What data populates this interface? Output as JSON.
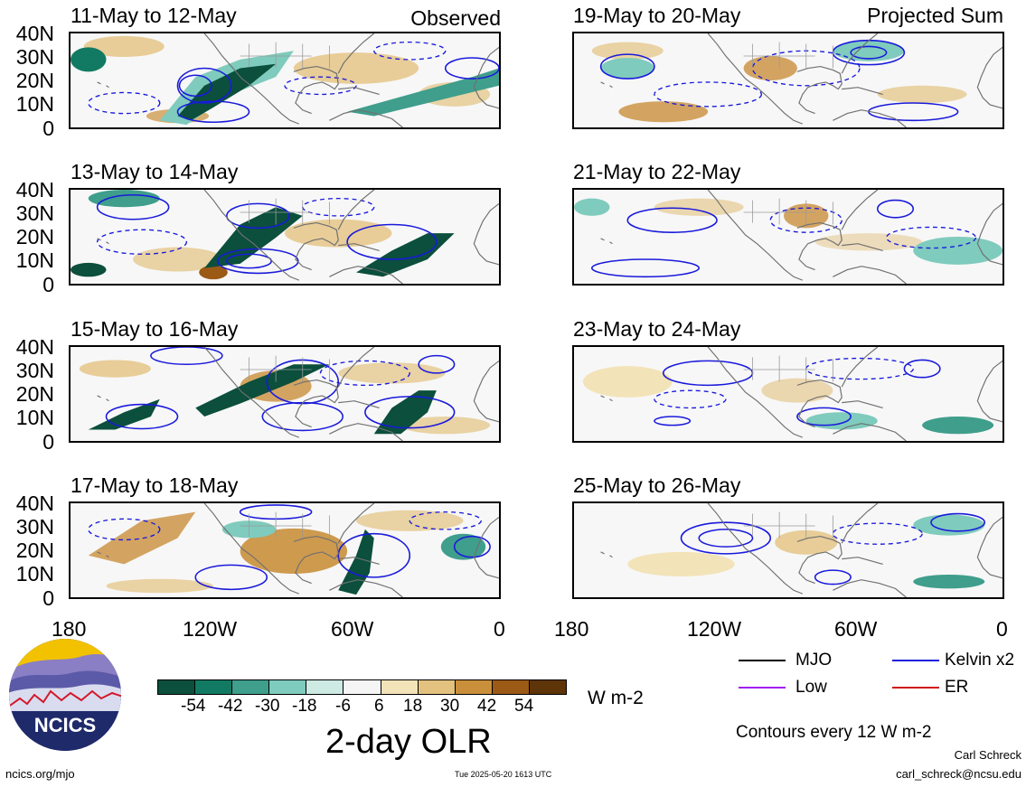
{
  "columns": {
    "left_tag": "Observed",
    "right_tag": "Projected Sum"
  },
  "panels": [
    {
      "title": "11-May to 12-May",
      "column": "left"
    },
    {
      "title": "13-May to 14-May",
      "column": "left"
    },
    {
      "title": "15-May to 16-May",
      "column": "left"
    },
    {
      "title": "17-May to 18-May",
      "column": "left"
    },
    {
      "title": "19-May to 20-May",
      "column": "right"
    },
    {
      "title": "21-May to 22-May",
      "column": "right"
    },
    {
      "title": "23-May to 24-May",
      "column": "right"
    },
    {
      "title": "25-May to 26-May",
      "column": "right"
    }
  ],
  "y_axis_labels": [
    "40N",
    "30N",
    "20N",
    "10N",
    "0"
  ],
  "x_axis_labels": [
    "180",
    "120W",
    "60W",
    "0"
  ],
  "colorbar": {
    "labels": [
      "-54",
      "-42",
      "-30",
      "-18",
      "-6",
      "6",
      "18",
      "30",
      "42",
      "54"
    ],
    "colors": [
      "#0b4f3c",
      "#127a63",
      "#3f9e8c",
      "#7fcbbd",
      "#cdeae3",
      "#f5f5f5",
      "#f3e3b8",
      "#e3c27f",
      "#c98f3b",
      "#9b5a16",
      "#5e3508"
    ],
    "units": "W m-2",
    "title": "2-day OLR"
  },
  "legend": {
    "items": [
      {
        "label": "MJO",
        "color": "#000000"
      },
      {
        "label": "Kelvin x2",
        "color": "#1a1adc"
      },
      {
        "label": "Low",
        "color": "#a020f0"
      },
      {
        "label": "ER",
        "color": "#d01010"
      }
    ],
    "contour_note": "Contours every 12 W m-2"
  },
  "footer": {
    "website": "ncics.org/mjo",
    "timestamp": "Tue 2025-05-20 1613 UTC",
    "author": "Carl Schreck",
    "email": "carl_schreck@ncsu.edu"
  },
  "logo": {
    "text": "NCICS"
  }
}
